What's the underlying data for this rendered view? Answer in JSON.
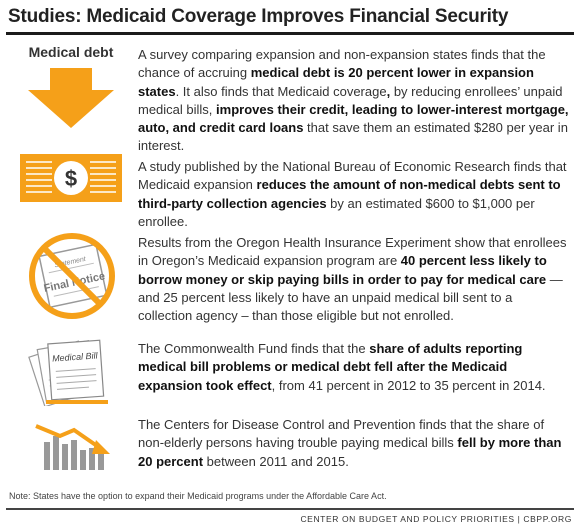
{
  "title": "Studies: Medicaid Coverage Improves Financial Security",
  "colors": {
    "accent": "#f5a019",
    "dark": "#333333",
    "gray": "#999999"
  },
  "items": [
    {
      "icon": "medical-debt-arrow-icon",
      "icon_label": "Medical debt",
      "parts": [
        {
          "t": "A survey comparing expansion and non-expansion states finds that the chance of accruing "
        },
        {
          "t": "medical debt is 20 percent lower in expansion states",
          "b": true
        },
        {
          "t": ".  It also finds that Medicaid coverage"
        },
        {
          "t": ",",
          "b": true
        },
        {
          "t": " by reducing enrollees’ unpaid medical bills, "
        },
        {
          "t": "improves their credit, leading to lower-interest mortgage, auto, and credit card loans",
          "b": true
        },
        {
          "t": " that save them an estimated $280 per year in interest."
        }
      ]
    },
    {
      "icon": "dollar-bill-icon",
      "icon_label": "$",
      "parts": [
        {
          "t": "A study published by the National Bureau of Economic Research finds that Medicaid expansion "
        },
        {
          "t": "reduces the amount of non-medical debts sent to third-party collection agencies",
          "b": true
        },
        {
          "t": " by an estimated $600 to $1,000 per enrollee."
        }
      ]
    },
    {
      "icon": "final-notice-prohibited-icon",
      "icon_label": "Final Notice",
      "icon_sublabel": "Statement",
      "parts": [
        {
          "t": "Results from the Oregon Health Insurance Experiment show that enrollees in Oregon’s Medicaid expansion program are "
        },
        {
          "t": "40 percent less likely to borrow money or skip paying bills in order to pay for medical care",
          "b": true
        },
        {
          "t": " — and 25 percent less likely to have an unpaid medical bill sent to a collection agency – than those eligible but not enrolled."
        }
      ]
    },
    {
      "icon": "medical-bill-stack-icon",
      "icon_label": "Medical Bill",
      "parts": [
        {
          "t": "The Commonwealth Fund finds that the "
        },
        {
          "t": "share of adults reporting medical bill problems or medical debt fell after the Medicaid expansion took effect",
          "b": true
        },
        {
          "t": ", from 41 percent in 2012 to 35 percent in 2014."
        }
      ]
    },
    {
      "icon": "declining-bar-chart-icon",
      "parts": [
        {
          "t": "The Centers for Disease Control and Prevention finds that the share of non-elderly persons having trouble paying medical bills "
        },
        {
          "t": "fell by more than 20 percent",
          "b": true
        },
        {
          "t": " between 2011 and 2015."
        }
      ]
    }
  ],
  "note": "Note: States have the option to expand their Medicaid programs under the Affordable Care Act.",
  "footer": "CENTER ON BUDGET AND POLICY PRIORITIES | CBPP.ORG"
}
